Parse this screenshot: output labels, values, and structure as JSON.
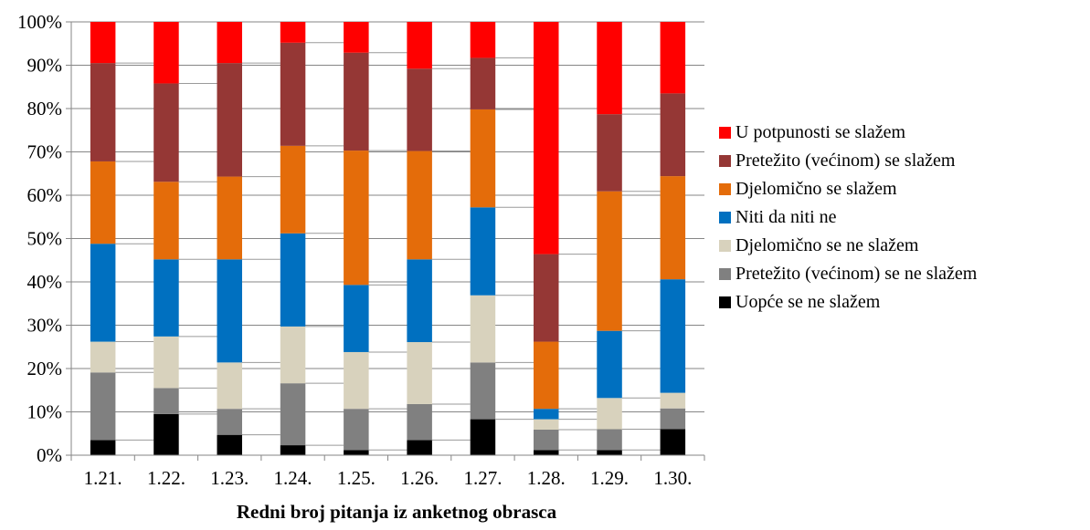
{
  "chart_data": {
    "type": "bar",
    "stacked": true,
    "percent_stacked": true,
    "title": "",
    "xlabel": "Redni broj pitanja iz anketnog obrasca",
    "ylabel": "",
    "ylim": [
      0,
      100
    ],
    "yticks": [
      "0%",
      "10%",
      "20%",
      "30%",
      "40%",
      "50%",
      "60%",
      "70%",
      "80%",
      "90%",
      "100%"
    ],
    "categories": [
      "1.21.",
      "1.22.",
      "1.23.",
      "1.24.",
      "1.25.",
      "1.26.",
      "1.27.",
      "1.28.",
      "1.29.",
      "1.30."
    ],
    "grid": true,
    "legend_position": "right",
    "series": [
      {
        "name": "Uopće se ne slažem",
        "color": "#000000",
        "values": [
          3.5,
          9.5,
          4.7,
          2.3,
          1.2,
          3.5,
          8.3,
          1.2,
          1.2,
          6.0
        ]
      },
      {
        "name": "Pretežito (većinom) se ne slažem",
        "color": "#808080",
        "values": [
          15.6,
          6.0,
          6.0,
          14.3,
          9.5,
          8.3,
          13.1,
          4.7,
          4.8,
          4.8
        ]
      },
      {
        "name": "Djelomično se ne slažem",
        "color": "#d8d2bd",
        "values": [
          7.1,
          11.9,
          10.7,
          13.1,
          13.1,
          14.3,
          15.5,
          2.4,
          7.2,
          3.6
        ]
      },
      {
        "name": "Niti da niti ne",
        "color": "#0070c0",
        "values": [
          22.6,
          17.8,
          23.8,
          21.5,
          15.5,
          19.1,
          20.3,
          2.4,
          15.5,
          26.2
        ]
      },
      {
        "name": "Djelomično se slažem",
        "color": "#e46c0a",
        "values": [
          19.0,
          17.9,
          19.1,
          20.2,
          31.0,
          25.0,
          22.6,
          15.5,
          32.2,
          23.8
        ]
      },
      {
        "name": "Pretežito (većinom) se slažem",
        "color": "#953735",
        "values": [
          22.7,
          22.7,
          26.2,
          23.8,
          22.6,
          19.0,
          11.9,
          20.2,
          17.8,
          19.1
        ]
      },
      {
        "name": "U potpunosti se slažem",
        "color": "#ff0000",
        "values": [
          9.5,
          14.2,
          9.5,
          4.8,
          7.1,
          10.8,
          8.3,
          53.6,
          21.3,
          16.5
        ]
      }
    ]
  }
}
